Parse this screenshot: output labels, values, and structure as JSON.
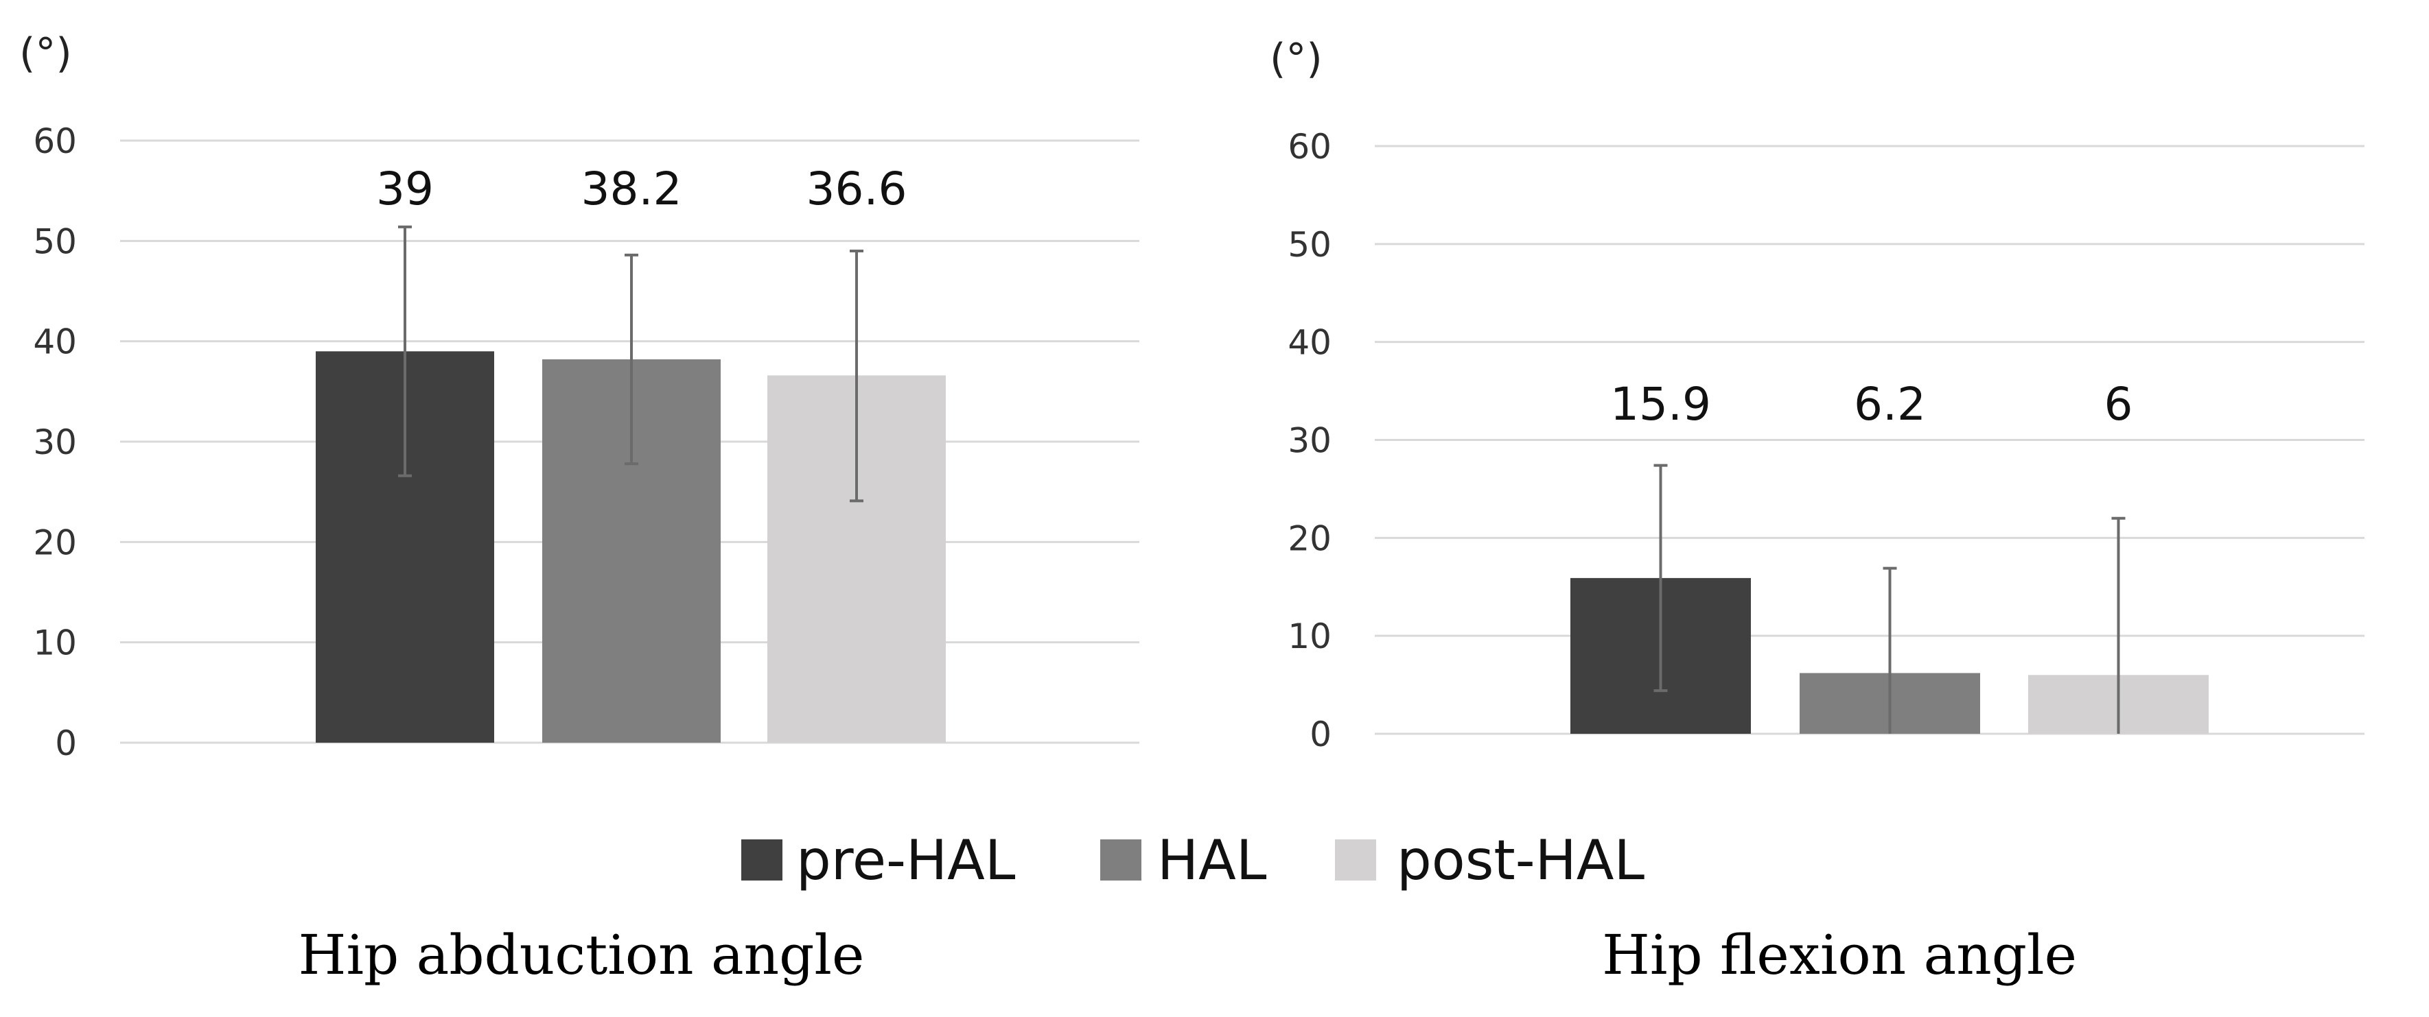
{
  "legend": [
    {
      "label": "pre-HAL",
      "color": "#404040"
    },
    {
      "label": "HAL",
      "color": "#7f7f7f"
    },
    {
      "label": "post-HAL",
      "color": "#d3d1d2"
    }
  ],
  "chart_data": [
    {
      "type": "bar",
      "title": "Hip abduction angle",
      "ylabel": "(°)",
      "ylim": [
        0,
        60
      ],
      "yticks": [
        0,
        10,
        20,
        30,
        40,
        50,
        60
      ],
      "grid": true,
      "categories": [
        "pre-HAL",
        "HAL",
        "post-HAL"
      ],
      "values": [
        39,
        38.2,
        36.6
      ],
      "value_labels": [
        "39",
        "38.2",
        "36.6"
      ],
      "error_bars": [
        {
          "low": 26.6,
          "high": 51.4
        },
        {
          "low": 27.8,
          "high": 48.6
        },
        {
          "low": 24.1,
          "high": 49.0
        }
      ]
    },
    {
      "type": "bar",
      "title": "Hip flexion angle",
      "ylabel": "(°)",
      "ylim": [
        0,
        60
      ],
      "yticks": [
        0,
        10,
        20,
        30,
        40,
        50,
        60
      ],
      "grid": true,
      "categories": [
        "pre-HAL",
        "HAL",
        "post-HAL"
      ],
      "values": [
        15.9,
        6.2,
        6
      ],
      "value_labels": [
        "15.9",
        "6.2",
        "6"
      ],
      "error_bars": [
        {
          "low": 4.4,
          "high": 27.4
        },
        {
          "low": 0,
          "high": 16.9
        },
        {
          "low": 0,
          "high": 22.0
        }
      ]
    }
  ]
}
